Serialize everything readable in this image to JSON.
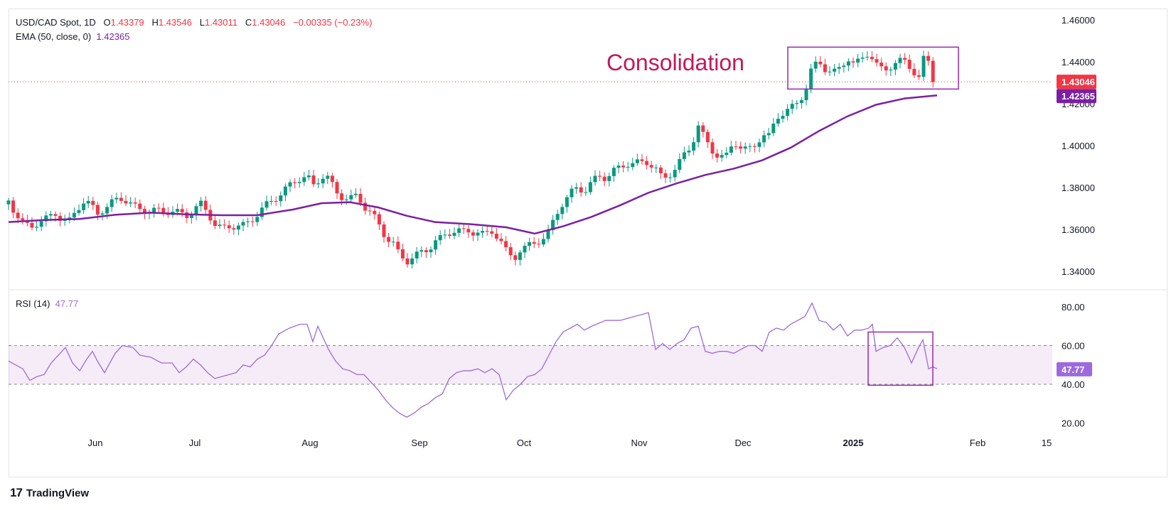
{
  "header": {
    "symbol": "USD/CAD Spot, 1D",
    "o_label": "O",
    "o_value": "1.43379",
    "h_label": "H",
    "h_value": "1.43546",
    "l_label": "L",
    "l_value": "1.43011",
    "c_label": "C",
    "c_value": "1.43046",
    "change": "−0.00335 (−0.23%)",
    "ema_label": "EMA (50, close, 0)",
    "ema_value": "1.42365",
    "rsi_label": "RSI (14)",
    "rsi_value": "47.77"
  },
  "annotation": {
    "text": "Consolidation"
  },
  "badges": {
    "price": "1.43046",
    "ema": "1.42365",
    "rsi": "47.77"
  },
  "brand": {
    "logo": "17",
    "name": "TradingView"
  },
  "colors": {
    "up": "#089981",
    "down": "#f23645",
    "ema": "#7b1fa2",
    "rsi": "#9c6ade",
    "annotation": "#c2185b",
    "box": "#9c27b0"
  },
  "chart_data": [
    {
      "type": "candlestick",
      "title": "USD/CAD Spot, 1D",
      "y_ticks": [
        "1.46000",
        "1.44000",
        "1.42000",
        "1.40000",
        "1.38000",
        "1.36000",
        "1.34000"
      ],
      "ylim": [
        1.336,
        1.463
      ],
      "x_ticks": [
        "Jun",
        "Jul",
        "Aug",
        "Sep",
        "Oct",
        "Nov",
        "Dec",
        "2025",
        "Feb",
        "15"
      ],
      "close_path": [
        [
          0,
          1.372
        ],
        [
          10,
          1.366
        ],
        [
          20,
          1.362
        ],
        [
          30,
          1.361
        ],
        [
          40,
          1.364
        ],
        [
          55,
          1.367
        ],
        [
          65,
          1.37
        ],
        [
          75,
          1.366
        ],
        [
          85,
          1.364
        ],
        [
          95,
          1.369
        ],
        [
          105,
          1.372
        ],
        [
          115,
          1.37
        ],
        [
          125,
          1.366
        ],
        [
          140,
          1.37
        ],
        [
          150,
          1.374
        ],
        [
          160,
          1.376
        ],
        [
          170,
          1.374
        ],
        [
          180,
          1.372
        ],
        [
          190,
          1.371
        ],
        [
          200,
          1.37
        ],
        [
          210,
          1.369
        ],
        [
          220,
          1.368
        ],
        [
          230,
          1.367
        ],
        [
          240,
          1.366
        ],
        [
          250,
          1.365
        ],
        [
          260,
          1.368
        ],
        [
          270,
          1.372
        ],
        [
          280,
          1.369
        ],
        [
          290,
          1.364
        ],
        [
          300,
          1.362
        ],
        [
          310,
          1.363
        ],
        [
          320,
          1.363
        ],
        [
          330,
          1.362
        ],
        [
          340,
          1.363
        ],
        [
          350,
          1.366
        ],
        [
          360,
          1.369
        ],
        [
          370,
          1.372
        ],
        [
          380,
          1.375
        ],
        [
          390,
          1.379
        ],
        [
          400,
          1.383
        ],
        [
          410,
          1.386
        ],
        [
          420,
          1.387
        ],
        [
          430,
          1.382
        ],
        [
          440,
          1.387
        ],
        [
          450,
          1.385
        ],
        [
          460,
          1.377
        ],
        [
          470,
          1.374
        ],
        [
          480,
          1.373
        ],
        [
          490,
          1.374
        ],
        [
          500,
          1.37
        ],
        [
          510,
          1.368
        ],
        [
          520,
          1.363
        ],
        [
          530,
          1.358
        ],
        [
          540,
          1.356
        ],
        [
          550,
          1.349
        ],
        [
          560,
          1.346
        ],
        [
          570,
          1.348
        ],
        [
          580,
          1.348
        ],
        [
          590,
          1.349
        ],
        [
          600,
          1.353
        ],
        [
          610,
          1.354
        ],
        [
          620,
          1.357
        ],
        [
          630,
          1.36
        ],
        [
          640,
          1.359
        ],
        [
          650,
          1.36
        ],
        [
          660,
          1.361
        ],
        [
          670,
          1.359
        ],
        [
          680,
          1.36
        ],
        [
          690,
          1.357
        ],
        [
          700,
          1.349
        ],
        [
          710,
          1.344
        ],
        [
          720,
          1.349
        ],
        [
          730,
          1.35
        ],
        [
          740,
          1.352
        ],
        [
          750,
          1.355
        ],
        [
          760,
          1.359
        ],
        [
          770,
          1.368
        ],
        [
          780,
          1.375
        ],
        [
          790,
          1.379
        ],
        [
          800,
          1.381
        ],
        [
          810,
          1.379
        ],
        [
          820,
          1.382
        ],
        [
          830,
          1.384
        ],
        [
          840,
          1.383
        ],
        [
          850,
          1.386
        ],
        [
          860,
          1.388
        ],
        [
          870,
          1.391
        ],
        [
          880,
          1.392
        ],
        [
          890,
          1.393
        ],
        [
          900,
          1.394
        ],
        [
          910,
          1.391
        ],
        [
          920,
          1.385
        ],
        [
          930,
          1.387
        ],
        [
          940,
          1.39
        ],
        [
          950,
          1.394
        ],
        [
          960,
          1.398
        ],
        [
          970,
          1.408
        ],
        [
          980,
          1.401
        ],
        [
          990,
          1.397
        ],
        [
          1000,
          1.395
        ],
        [
          1010,
          1.396
        ],
        [
          1020,
          1.404
        ],
        [
          1030,
          1.401
        ],
        [
          1040,
          1.399
        ],
        [
          1050,
          1.401
        ],
        [
          1060,
          1.405
        ],
        [
          1070,
          1.403
        ],
        [
          1080,
          1.412
        ],
        [
          1090,
          1.414
        ],
        [
          1100,
          1.416
        ],
        [
          1110,
          1.42
        ],
        [
          1120,
          1.426
        ],
        [
          1130,
          1.438
        ],
        [
          1140,
          1.442
        ],
        [
          1150,
          1.438
        ],
        [
          1160,
          1.436
        ],
        [
          1170,
          1.438
        ],
        [
          1180,
          1.442
        ],
        [
          1190,
          1.437
        ],
        [
          1200,
          1.44
        ],
        [
          1210,
          1.443
        ],
        [
          1220,
          1.437
        ],
        [
          1230,
          1.435
        ],
        [
          1240,
          1.438
        ],
        [
          1250,
          1.441
        ],
        [
          1260,
          1.442
        ],
        [
          1270,
          1.439
        ],
        [
          1280,
          1.433
        ],
        [
          1290,
          1.446
        ],
        [
          1300,
          1.432
        ],
        [
          1306,
          1.43
        ]
      ],
      "ema_path": [
        [
          0,
          1.3635
        ],
        [
          50,
          1.3645
        ],
        [
          100,
          1.365
        ],
        [
          150,
          1.367
        ],
        [
          200,
          1.368
        ],
        [
          250,
          1.3672
        ],
        [
          300,
          1.3668
        ],
        [
          350,
          1.3668
        ],
        [
          400,
          1.3695
        ],
        [
          440,
          1.3725
        ],
        [
          480,
          1.373
        ],
        [
          520,
          1.3705
        ],
        [
          560,
          1.3665
        ],
        [
          600,
          1.3635
        ],
        [
          650,
          1.3625
        ],
        [
          700,
          1.361
        ],
        [
          740,
          1.358
        ],
        [
          780,
          1.3615
        ],
        [
          820,
          1.366
        ],
        [
          860,
          1.3715
        ],
        [
          900,
          1.3775
        ],
        [
          940,
          1.382
        ],
        [
          980,
          1.386
        ],
        [
          1020,
          1.389
        ],
        [
          1060,
          1.393
        ],
        [
          1100,
          1.399
        ],
        [
          1140,
          1.407
        ],
        [
          1180,
          1.414
        ],
        [
          1220,
          1.4195
        ],
        [
          1260,
          1.4225
        ],
        [
          1306,
          1.424
        ]
      ],
      "consolidation_box": {
        "x": [
          1108,
          1348
        ],
        "y": [
          1.427,
          1.447
        ]
      },
      "last_close": 1.43046,
      "ema_last": 1.42365
    },
    {
      "type": "line",
      "title": "RSI (14)",
      "y_ticks": [
        "80.00",
        "60.00",
        "40.00",
        "20.00"
      ],
      "ylim": [
        14,
        88
      ],
      "band": [
        40,
        60
      ],
      "values": [
        [
          0,
          52
        ],
        [
          20,
          48
        ],
        [
          30,
          42
        ],
        [
          40,
          44
        ],
        [
          50,
          45
        ],
        [
          60,
          51
        ],
        [
          75,
          57
        ],
        [
          80,
          59
        ],
        [
          90,
          51
        ],
        [
          100,
          47
        ],
        [
          110,
          53
        ],
        [
          118,
          57
        ],
        [
          125,
          52
        ],
        [
          135,
          46
        ],
        [
          150,
          56
        ],
        [
          160,
          60
        ],
        [
          175,
          59
        ],
        [
          185,
          55
        ],
        [
          200,
          54
        ],
        [
          215,
          51
        ],
        [
          230,
          51
        ],
        [
          240,
          46
        ],
        [
          250,
          49
        ],
        [
          260,
          53
        ],
        [
          270,
          50
        ],
        [
          280,
          46
        ],
        [
          290,
          43
        ],
        [
          300,
          44
        ],
        [
          310,
          45
        ],
        [
          320,
          46
        ],
        [
          330,
          50
        ],
        [
          340,
          49
        ],
        [
          350,
          53
        ],
        [
          360,
          55
        ],
        [
          370,
          60
        ],
        [
          380,
          66
        ],
        [
          395,
          69
        ],
        [
          410,
          71
        ],
        [
          420,
          71
        ],
        [
          428,
          62
        ],
        [
          435,
          70
        ],
        [
          450,
          58
        ],
        [
          460,
          52
        ],
        [
          470,
          48
        ],
        [
          480,
          47
        ],
        [
          490,
          45
        ],
        [
          500,
          45
        ],
        [
          510,
          41
        ],
        [
          520,
          37
        ],
        [
          530,
          32
        ],
        [
          540,
          28
        ],
        [
          550,
          25
        ],
        [
          560,
          23
        ],
        [
          570,
          25
        ],
        [
          580,
          28
        ],
        [
          590,
          30
        ],
        [
          600,
          33
        ],
        [
          610,
          35
        ],
        [
          620,
          43
        ],
        [
          630,
          46
        ],
        [
          640,
          47
        ],
        [
          650,
          47
        ],
        [
          660,
          48
        ],
        [
          670,
          46
        ],
        [
          680,
          48
        ],
        [
          690,
          45
        ],
        [
          700,
          32
        ],
        [
          710,
          37
        ],
        [
          720,
          40
        ],
        [
          730,
          44
        ],
        [
          740,
          45
        ],
        [
          750,
          48
        ],
        [
          760,
          55
        ],
        [
          770,
          62
        ],
        [
          780,
          67
        ],
        [
          800,
          71
        ],
        [
          810,
          68
        ],
        [
          820,
          70
        ],
        [
          840,
          73
        ],
        [
          860,
          73
        ],
        [
          880,
          75
        ],
        [
          900,
          77
        ],
        [
          910,
          58
        ],
        [
          920,
          61
        ],
        [
          930,
          58
        ],
        [
          940,
          61
        ],
        [
          950,
          63
        ],
        [
          960,
          69
        ],
        [
          970,
          70
        ],
        [
          980,
          57
        ],
        [
          990,
          56
        ],
        [
          1000,
          57
        ],
        [
          1010,
          57
        ],
        [
          1020,
          56
        ],
        [
          1030,
          58
        ],
        [
          1040,
          60
        ],
        [
          1050,
          60
        ],
        [
          1060,
          57
        ],
        [
          1070,
          67
        ],
        [
          1080,
          69
        ],
        [
          1090,
          68
        ],
        [
          1100,
          71
        ],
        [
          1110,
          73
        ],
        [
          1120,
          75
        ],
        [
          1130,
          82
        ],
        [
          1140,
          73
        ],
        [
          1150,
          72
        ],
        [
          1160,
          68
        ],
        [
          1170,
          71
        ],
        [
          1180,
          65
        ],
        [
          1190,
          68
        ],
        [
          1200,
          68
        ],
        [
          1210,
          69
        ],
        [
          1215,
          71
        ],
        [
          1220,
          57
        ],
        [
          1230,
          59
        ],
        [
          1240,
          60
        ],
        [
          1250,
          64
        ],
        [
          1260,
          59
        ],
        [
          1270,
          51
        ],
        [
          1280,
          59
        ],
        [
          1286,
          63
        ],
        [
          1294,
          48
        ],
        [
          1300,
          49
        ],
        [
          1306,
          48
        ]
      ],
      "highlight_box": {
        "x": [
          1221,
          1312
        ],
        "y": [
          39.5,
          67
        ]
      },
      "last_value": 47.77
    }
  ]
}
